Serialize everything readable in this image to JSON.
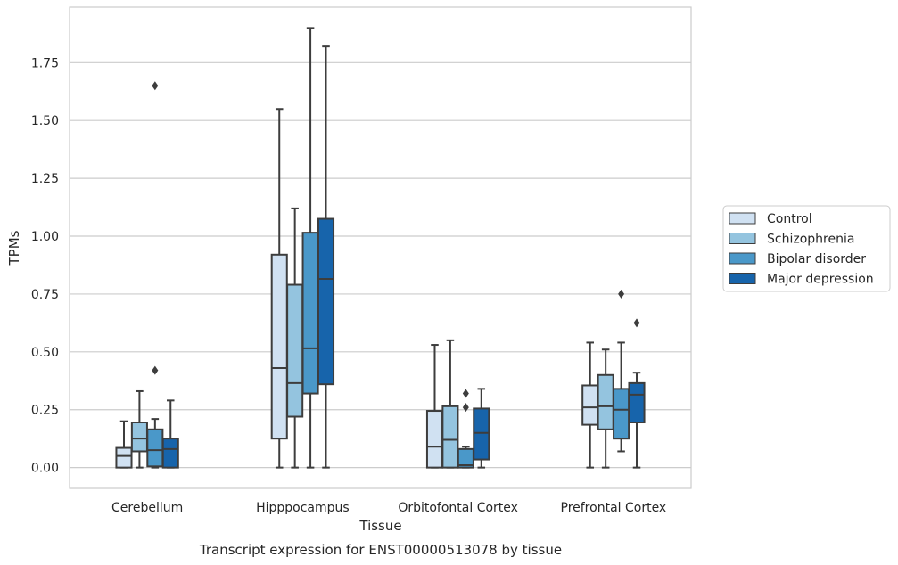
{
  "chart_data": {
    "type": "box",
    "title": "",
    "caption": "Transcript expression for ENST00000513078 by tissue",
    "xlabel": "Tissue",
    "ylabel": "TPMs",
    "ylim": [
      -0.09,
      1.99
    ],
    "yticks": [
      "0.00",
      "0.25",
      "0.50",
      "0.75",
      "1.00",
      "1.25",
      "1.50",
      "1.75"
    ],
    "grid": "horizontal",
    "legend_position": "right",
    "categories": [
      "Cerebellum",
      "Hipppocampus",
      "Orbitofontal Cortex",
      "Prefrontal Cortex"
    ],
    "series": [
      {
        "name": "Control",
        "color": "#d0e1f2",
        "boxes": [
          {
            "min": 0.0,
            "q1": 0.0,
            "median": 0.05,
            "q3": 0.085,
            "max": 0.2,
            "outliers": []
          },
          {
            "min": 0.0,
            "q1": 0.125,
            "median": 0.43,
            "q3": 0.92,
            "max": 1.55,
            "outliers": []
          },
          {
            "min": 0.0,
            "q1": 0.0,
            "median": 0.09,
            "q3": 0.245,
            "max": 0.53,
            "outliers": []
          },
          {
            "min": 0.0,
            "q1": 0.185,
            "median": 0.26,
            "q3": 0.355,
            "max": 0.54,
            "outliers": []
          }
        ]
      },
      {
        "name": "Schizophrenia",
        "color": "#94c4df",
        "boxes": [
          {
            "min": 0.0,
            "q1": 0.07,
            "median": 0.125,
            "q3": 0.195,
            "max": 0.33,
            "outliers": []
          },
          {
            "min": 0.0,
            "q1": 0.22,
            "median": 0.365,
            "q3": 0.79,
            "max": 1.12,
            "outliers": []
          },
          {
            "min": 0.0,
            "q1": 0.0,
            "median": 0.12,
            "q3": 0.265,
            "max": 0.55,
            "outliers": []
          },
          {
            "min": 0.0,
            "q1": 0.165,
            "median": 0.265,
            "q3": 0.4,
            "max": 0.51,
            "outliers": []
          }
        ]
      },
      {
        "name": "Bipolar disorder",
        "color": "#4a98c9",
        "boxes": [
          {
            "min": 0.0,
            "q1": 0.005,
            "median": 0.075,
            "q3": 0.165,
            "max": 0.21,
            "outliers": [
              0.42,
              1.65
            ]
          },
          {
            "min": 0.0,
            "q1": 0.32,
            "median": 0.515,
            "q3": 1.015,
            "max": 1.9,
            "outliers": []
          },
          {
            "min": 0.0,
            "q1": 0.0,
            "median": 0.01,
            "q3": 0.08,
            "max": 0.09,
            "outliers": [
              0.26,
              0.32
            ]
          },
          {
            "min": 0.07,
            "q1": 0.125,
            "median": 0.25,
            "q3": 0.34,
            "max": 0.54,
            "outliers": [
              0.75
            ]
          }
        ]
      },
      {
        "name": "Major depression",
        "color": "#1764ab",
        "boxes": [
          {
            "min": 0.0,
            "q1": 0.0,
            "median": 0.08,
            "q3": 0.125,
            "max": 0.29,
            "outliers": []
          },
          {
            "min": 0.0,
            "q1": 0.36,
            "median": 0.815,
            "q3": 1.075,
            "max": 1.82,
            "outliers": []
          },
          {
            "min": 0.0,
            "q1": 0.035,
            "median": 0.15,
            "q3": 0.255,
            "max": 0.34,
            "outliers": []
          },
          {
            "min": 0.0,
            "q1": 0.195,
            "median": 0.315,
            "q3": 0.365,
            "max": 0.41,
            "outliers": [
              0.625
            ]
          }
        ]
      }
    ]
  }
}
